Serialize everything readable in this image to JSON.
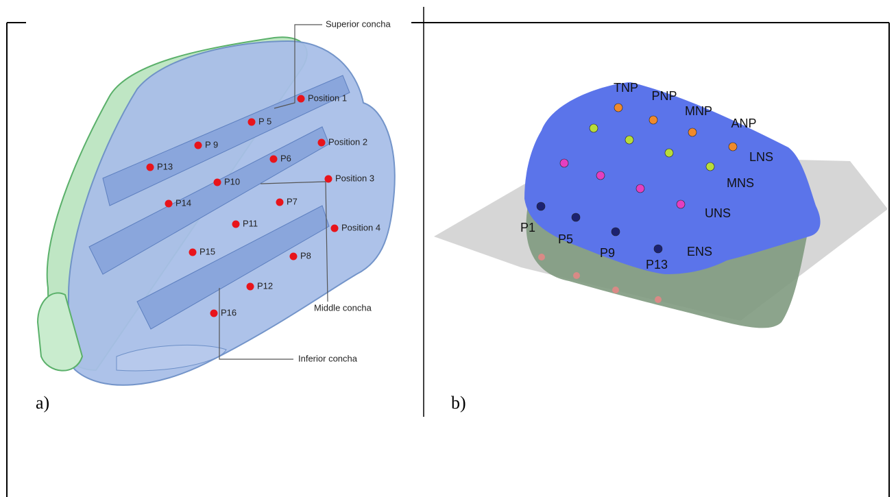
{
  "panel_a": {
    "label": "a)",
    "annotations": {
      "superior": "Superior concha",
      "middle": "Middle concha",
      "inferior": "Inferior concha"
    },
    "points": [
      "Position 1",
      "P 5",
      "Position 2",
      "P 9",
      "P6",
      "P13",
      "Position 3",
      "P10",
      "P14",
      "P7",
      "P11",
      "Position 4",
      "P15",
      "P8",
      "P12",
      "P16"
    ]
  },
  "panel_b": {
    "label": "b)",
    "top_labels": [
      "TNP",
      "PNP",
      "MNP",
      "ANP"
    ],
    "row_labels": [
      "LNS",
      "MNS",
      "UNS",
      "ENS"
    ],
    "bottom_labels": [
      "P1",
      "P5",
      "P9",
      "P13"
    ]
  }
}
